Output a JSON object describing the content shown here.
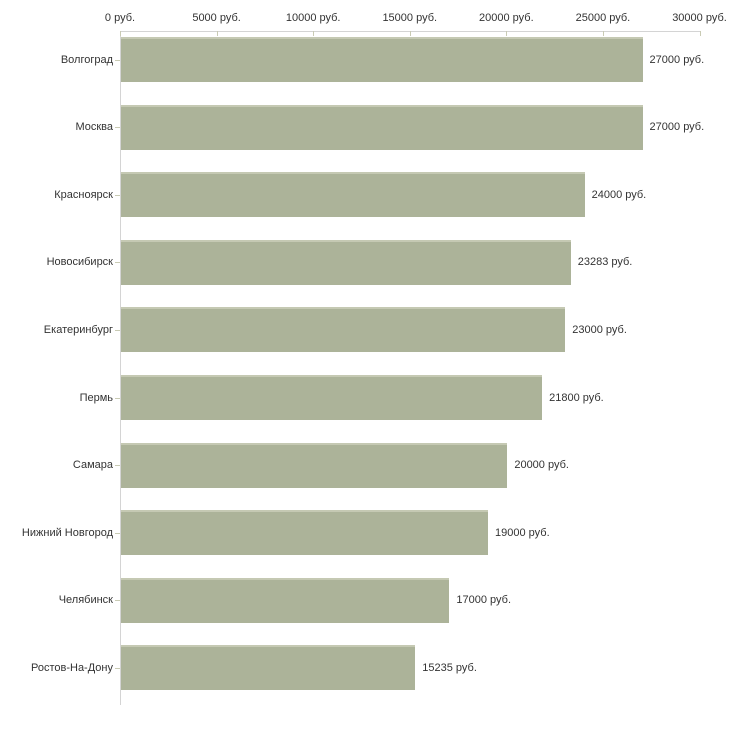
{
  "chart_data": {
    "type": "bar",
    "orientation": "horizontal",
    "title": "",
    "xlabel": "",
    "ylabel": "",
    "grid": false,
    "legend": "none",
    "xlim": [
      0,
      30000
    ],
    "x_ticks": [
      0,
      5000,
      10000,
      15000,
      20000,
      25000,
      30000
    ],
    "x_tick_labels": [
      "0 руб.",
      "5000 руб.",
      "10000 руб.",
      "15000 руб.",
      "20000 руб.",
      "25000 руб.",
      "30000 руб."
    ],
    "unit_suffix": " руб.",
    "categories": [
      "Волгоград",
      "Москва",
      "Красноярск",
      "Новосибирск",
      "Екатеринбург",
      "Пермь",
      "Самара",
      "Нижний Новгород",
      "Челябинск",
      "Ростов-На-Дону"
    ],
    "values": [
      27000,
      27000,
      24000,
      23283,
      23000,
      21800,
      20000,
      19000,
      17000,
      15235
    ],
    "value_labels": [
      "27000 руб.",
      "27000 руб.",
      "24000 руб.",
      "23283 руб.",
      "23000 руб.",
      "21800 руб.",
      "20000 руб.",
      "19000 руб.",
      "17000 руб.",
      "15235 руб."
    ],
    "bar_color": "#acb399",
    "bar_edge_color": "#c5c9b3",
    "axis_line_color": "#d4d4d4",
    "tick_color": "#c9cbb4",
    "text_color": "#333333",
    "background_color": "#ffffff"
  }
}
